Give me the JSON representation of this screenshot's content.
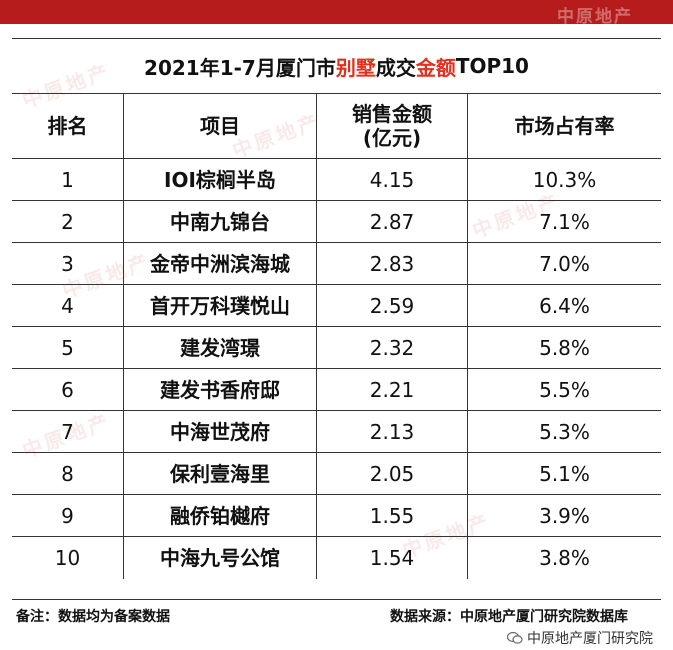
{
  "brand": {
    "bar_color": "#b71c1c",
    "watermark": "中原地产"
  },
  "title": {
    "prefix": "2021年1-7月厦门市",
    "hl1": "别墅",
    "middle": "成交",
    "hl2": "金额",
    "suffix": "TOP10",
    "highlight_color": "#e0301e"
  },
  "table": {
    "headers": {
      "rank": "排名",
      "project": "项目",
      "sales_line1": "销售金额",
      "sales_line2": "(亿元)",
      "share": "市场占有率"
    },
    "rows": [
      {
        "rank": "1",
        "project": "IOI棕榈半岛",
        "sales": "4.15",
        "share": "10.3%"
      },
      {
        "rank": "2",
        "project": "中南九锦台",
        "sales": "2.87",
        "share": "7.1%"
      },
      {
        "rank": "3",
        "project": "金帝中洲滨海城",
        "sales": "2.83",
        "share": "7.0%"
      },
      {
        "rank": "4",
        "project": "首开万科璞悦山",
        "sales": "2.59",
        "share": "6.4%"
      },
      {
        "rank": "5",
        "project": "建发湾璟",
        "sales": "2.32",
        "share": "5.8%"
      },
      {
        "rank": "6",
        "project": "建发书香府邸",
        "sales": "2.21",
        "share": "5.5%"
      },
      {
        "rank": "7",
        "project": "中海世茂府",
        "sales": "2.13",
        "share": "5.3%"
      },
      {
        "rank": "8",
        "project": "保利壹海里",
        "sales": "2.05",
        "share": "5.1%"
      },
      {
        "rank": "9",
        "project": "融侨铂樾府",
        "sales": "1.55",
        "share": "3.9%"
      },
      {
        "rank": "10",
        "project": "中海九号公馆",
        "sales": "1.54",
        "share": "3.8%"
      }
    ]
  },
  "footer": {
    "note": "备注：数据均为备案数据",
    "source": "数据来源：中原地产厦门研究院数据库",
    "wechat": "中原地产厦门研究院"
  }
}
